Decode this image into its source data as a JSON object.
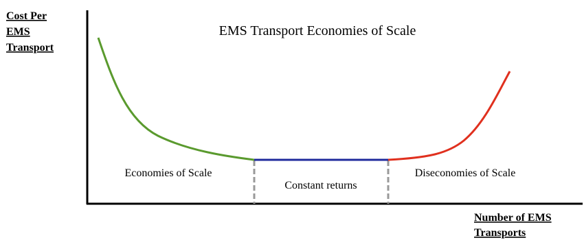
{
  "title": "EMS Transport Economies of Scale",
  "y_axis_label": [
    "Cost Per",
    "EMS",
    "Transport"
  ],
  "x_axis_label": [
    "Number of EMS",
    "Transports"
  ],
  "regions": [
    "Economies of Scale",
    "Constant returns",
    "Diseconomies of Scale"
  ]
}
